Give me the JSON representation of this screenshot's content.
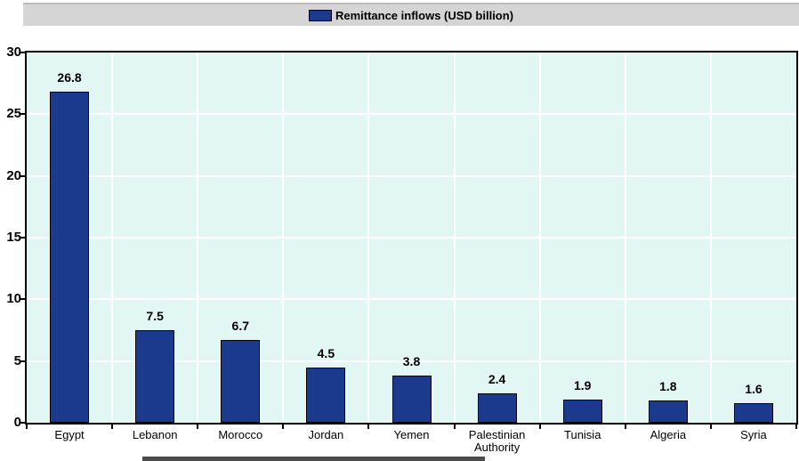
{
  "legend": {
    "label": "Remittance inflows (USD billion)",
    "swatch_color": "#1b3a8e"
  },
  "colors": {
    "bar_fill": "#1b3a8e",
    "bar_border": "#000000",
    "plot_background": "#e2f6f3",
    "gridline": "#ffffff",
    "legend_band_background": "#d5d5d5",
    "axis": "#000000"
  },
  "chart_data": {
    "type": "bar",
    "title": "",
    "series_label": "Remittance inflows (USD billion)",
    "categories": [
      "Egypt",
      "Lebanon",
      "Morocco",
      "Jordan",
      "Yemen",
      "Palestinian Authority",
      "Tunisia",
      "Algeria",
      "Syria"
    ],
    "values": [
      26.8,
      7.5,
      6.7,
      4.5,
      3.8,
      2.4,
      1.9,
      1.8,
      1.6
    ],
    "value_labels": [
      "26.8",
      "7.5",
      "6.7",
      "4.5",
      "3.8",
      "2.4",
      "1.9",
      "1.8",
      "1.6"
    ],
    "xlabel": "",
    "ylabel": "",
    "ylim": [
      0,
      30
    ],
    "yticks": [
      0,
      5,
      10,
      15,
      20,
      25,
      30
    ],
    "grid": true,
    "legend_position": "top"
  }
}
